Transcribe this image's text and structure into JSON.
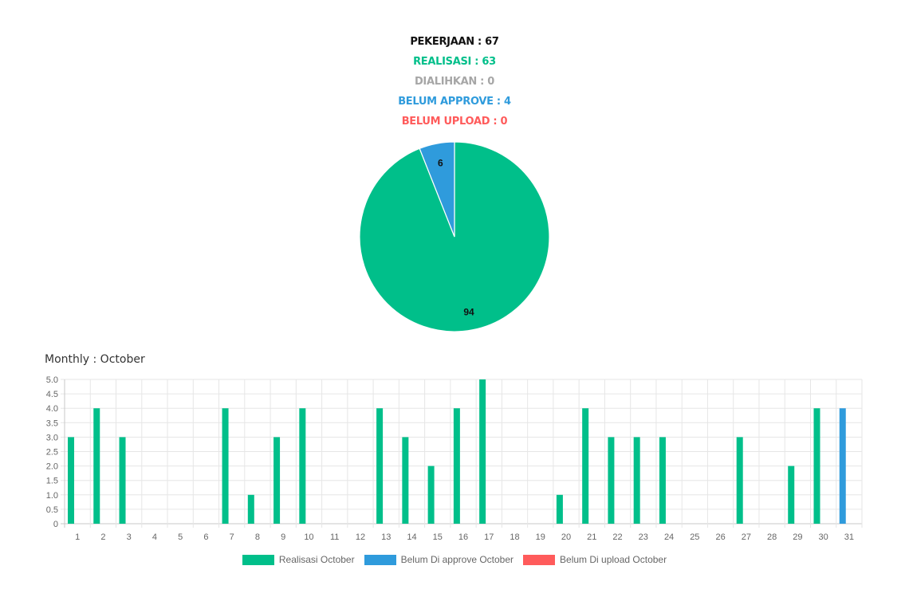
{
  "stats": {
    "pekerjaan": "PEKERJAAN : 67",
    "realisasi": "REALISASI : 63",
    "dialihkan": "DIALIHKAN : 0",
    "belum_approve": "BELUM APPROVE : 4",
    "belum_upload": "BELUM UPLOAD : 0"
  },
  "colors": {
    "realisasi": "#00bf8a",
    "belum_approve": "#2f9bdc",
    "belum_upload": "#ff5b5b",
    "dialihkan": "#a6a6a6"
  },
  "monthly_title": "Monthly : October",
  "chart_data": [
    {
      "type": "pie",
      "slices": [
        {
          "label": "94",
          "value": 94,
          "color": "#00bf8a"
        },
        {
          "label": "6",
          "value": 6,
          "color": "#2f9bdc"
        }
      ]
    },
    {
      "type": "bar",
      "categories": [
        "1",
        "2",
        "3",
        "4",
        "5",
        "6",
        "7",
        "8",
        "9",
        "10",
        "11",
        "12",
        "13",
        "14",
        "15",
        "16",
        "17",
        "18",
        "19",
        "20",
        "21",
        "22",
        "23",
        "24",
        "25",
        "26",
        "27",
        "28",
        "29",
        "30",
        "31"
      ],
      "ylim": [
        0,
        5
      ],
      "yticks": [
        "0",
        "0.5",
        "1.0",
        "1.5",
        "2.0",
        "2.5",
        "3.0",
        "3.5",
        "4.0",
        "4.5",
        "5.0"
      ],
      "grid": true,
      "legend_position": "bottom",
      "series": [
        {
          "name": "Realisasi October",
          "color": "#00bf8a",
          "values": [
            3,
            4,
            3,
            0,
            0,
            0,
            4,
            1,
            3,
            4,
            0,
            0,
            4,
            3,
            2,
            4,
            5,
            0,
            0,
            1,
            4,
            3,
            3,
            3,
            0,
            0,
            3,
            0,
            2,
            4,
            0
          ]
        },
        {
          "name": "Belum Di approve October",
          "color": "#2f9bdc",
          "values": [
            0,
            0,
            0,
            0,
            0,
            0,
            0,
            0,
            0,
            0,
            0,
            0,
            0,
            0,
            0,
            0,
            0,
            0,
            0,
            0,
            0,
            0,
            0,
            0,
            0,
            0,
            0,
            0,
            0,
            0,
            4
          ]
        },
        {
          "name": "Belum Di upload October",
          "color": "#ff5b5b",
          "values": [
            0,
            0,
            0,
            0,
            0,
            0,
            0,
            0,
            0,
            0,
            0,
            0,
            0,
            0,
            0,
            0,
            0,
            0,
            0,
            0,
            0,
            0,
            0,
            0,
            0,
            0,
            0,
            0,
            0,
            0,
            0
          ]
        }
      ]
    }
  ]
}
